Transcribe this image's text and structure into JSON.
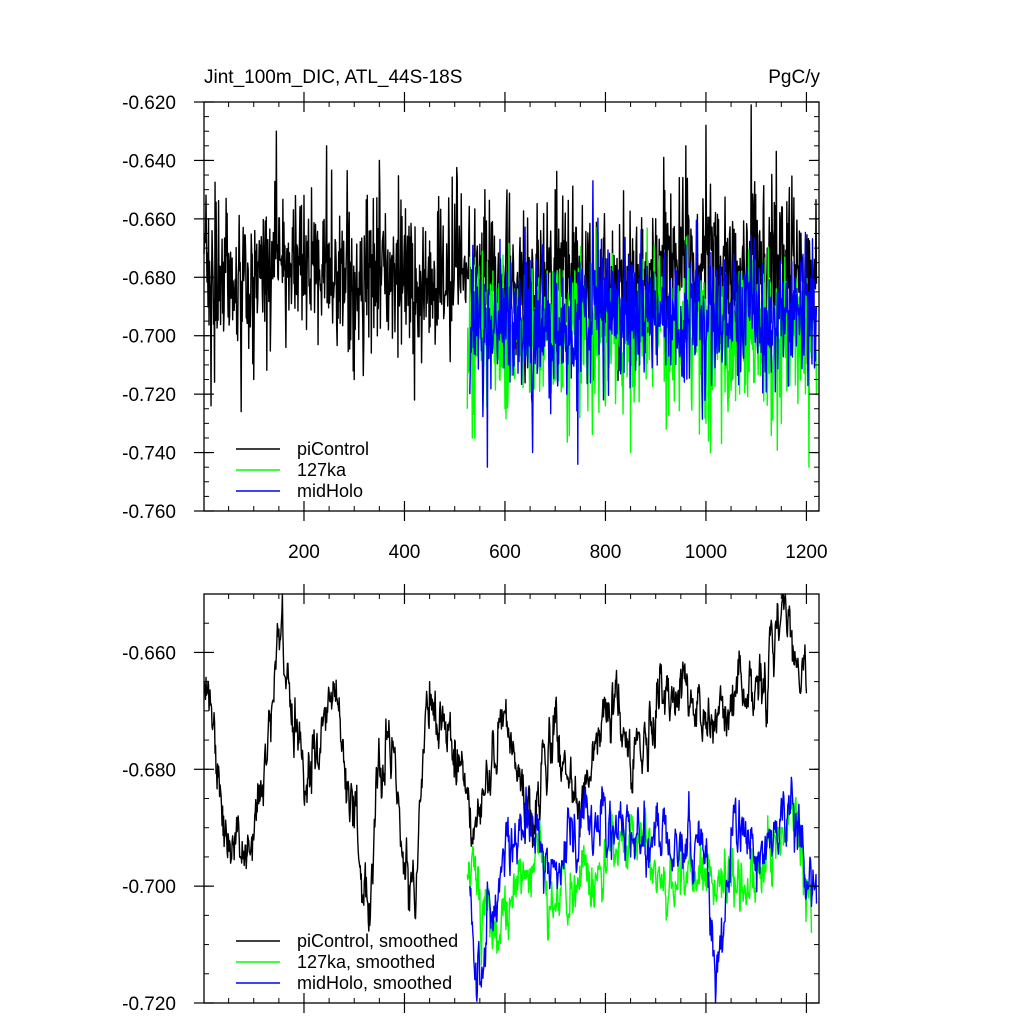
{
  "chart_data": [
    {
      "type": "line",
      "title": "Jint_100m_DIC, ATL_44S-18S",
      "units": "PgC/y",
      "xlim": [
        1,
        1225
      ],
      "ylim": [
        -0.76,
        -0.62
      ],
      "x_ticks": [
        200,
        400,
        600,
        800,
        1000,
        1200
      ],
      "y_ticks": [
        "-0.620",
        "-0.640",
        "-0.660",
        "-0.680",
        "-0.700",
        "-0.720",
        "-0.740",
        "-0.760"
      ],
      "legend": {
        "placement": "bottom-left",
        "entries": [
          "piControl",
          "127ka",
          "midHolo"
        ]
      },
      "series": [
        {
          "name": "piControl",
          "color": "#000000",
          "x_start": 1,
          "x_end": 1220,
          "mean": -0.68,
          "std": 0.014,
          "points": [
            [
              1,
              -0.672
            ],
            [
              10,
              -0.66
            ],
            [
              15,
              -0.724
            ],
            [
              45,
              -0.653
            ],
            [
              75,
              -0.726
            ],
            [
              100,
              -0.715
            ],
            [
              145,
              -0.63
            ],
            [
              200,
              -0.652
            ],
            [
              245,
              -0.635
            ],
            [
              300,
              -0.715
            ],
            [
              350,
              -0.64
            ],
            [
              420,
              -0.722
            ],
            [
              500,
              -0.655
            ],
            [
              530,
              -0.69
            ],
            [
              560,
              -0.65
            ],
            [
              600,
              -0.69
            ],
            [
              700,
              -0.65
            ],
            [
              800,
              -0.7
            ],
            [
              900,
              -0.66
            ],
            [
              960,
              -0.635
            ],
            [
              1000,
              -0.628
            ],
            [
              1090,
              -0.621
            ],
            [
              1150,
              -0.66
            ],
            [
              1210,
              -0.68
            ]
          ]
        },
        {
          "name": "127ka",
          "color": "#00ff00",
          "x_start": 525,
          "x_end": 1220,
          "mean": -0.697,
          "std": 0.014,
          "points": [
            [
              525,
              -0.725
            ],
            [
              535,
              -0.735
            ],
            [
              600,
              -0.725
            ],
            [
              700,
              -0.715
            ],
            [
              850,
              -0.74
            ],
            [
              900,
              -0.68
            ],
            [
              1000,
              -0.73
            ],
            [
              1100,
              -0.7
            ],
            [
              1150,
              -0.73
            ],
            [
              1205,
              -0.745
            ],
            [
              1220,
              -0.72
            ]
          ]
        },
        {
          "name": "midHolo",
          "color": "#0000ff",
          "x_start": 530,
          "x_end": 1220,
          "mean": -0.693,
          "std": 0.013,
          "points": [
            [
              530,
              -0.72
            ],
            [
              565,
              -0.745
            ],
            [
              600,
              -0.7
            ],
            [
              655,
              -0.74
            ],
            [
              745,
              -0.744
            ],
            [
              775,
              -0.647
            ],
            [
              850,
              -0.7
            ],
            [
              950,
              -0.69
            ],
            [
              1050,
              -0.7
            ],
            [
              1150,
              -0.7
            ],
            [
              1220,
              -0.69
            ]
          ]
        }
      ]
    },
    {
      "type": "line",
      "title": "",
      "xlim": [
        1,
        1225
      ],
      "ylim": [
        -0.72,
        -0.65
      ],
      "x_ticks": [
        200,
        400,
        600,
        800,
        1000,
        1200
      ],
      "y_ticks": [
        "-0.660",
        "-0.680",
        "-0.700",
        "-0.720"
      ],
      "legend": {
        "placement": "bottom-left",
        "entries": [
          "piControl, smoothed",
          "127ka, smoothed",
          "midHolo, smoothed"
        ]
      },
      "series": [
        {
          "name": "piControl, smoothed",
          "color": "#000000",
          "x_start": 1,
          "x_end": 1200,
          "points": [
            [
              1,
              -0.665
            ],
            [
              40,
              -0.688
            ],
            [
              85,
              -0.697
            ],
            [
              120,
              -0.682
            ],
            [
              150,
              -0.656
            ],
            [
              200,
              -0.685
            ],
            [
              245,
              -0.672
            ],
            [
              265,
              -0.668
            ],
            [
              300,
              -0.69
            ],
            [
              330,
              -0.703
            ],
            [
              345,
              -0.68
            ],
            [
              370,
              -0.674
            ],
            [
              400,
              -0.696
            ],
            [
              420,
              -0.703
            ],
            [
              450,
              -0.665
            ],
            [
              500,
              -0.675
            ],
            [
              530,
              -0.69
            ],
            [
              600,
              -0.67
            ],
            [
              650,
              -0.69
            ],
            [
              700,
              -0.672
            ],
            [
              750,
              -0.687
            ],
            [
              800,
              -0.668
            ],
            [
              850,
              -0.68
            ],
            [
              900,
              -0.67
            ],
            [
              960,
              -0.665
            ],
            [
              1000,
              -0.673
            ],
            [
              1050,
              -0.67
            ],
            [
              1100,
              -0.665
            ],
            [
              1160,
              -0.654
            ],
            [
              1200,
              -0.667
            ]
          ]
        },
        {
          "name": "127ka, smoothed",
          "color": "#00ff00",
          "x_start": 525,
          "x_end": 1210,
          "points": [
            [
              525,
              -0.698
            ],
            [
              560,
              -0.705
            ],
            [
              600,
              -0.7
            ],
            [
              650,
              -0.697
            ],
            [
              700,
              -0.703
            ],
            [
              750,
              -0.7
            ],
            [
              800,
              -0.697
            ],
            [
              850,
              -0.69
            ],
            [
              900,
              -0.698
            ],
            [
              950,
              -0.7
            ],
            [
              1000,
              -0.697
            ],
            [
              1050,
              -0.7
            ],
            [
              1100,
              -0.7
            ],
            [
              1150,
              -0.69
            ],
            [
              1180,
              -0.688
            ],
            [
              1210,
              -0.708
            ]
          ]
        },
        {
          "name": "midHolo, smoothed",
          "color": "#0000ff",
          "x_start": 530,
          "x_end": 1220,
          "points": [
            [
              530,
              -0.7
            ],
            [
              540,
              -0.716
            ],
            [
              600,
              -0.695
            ],
            [
              650,
              -0.69
            ],
            [
              700,
              -0.697
            ],
            [
              750,
              -0.69
            ],
            [
              800,
              -0.687
            ],
            [
              850,
              -0.695
            ],
            [
              900,
              -0.69
            ],
            [
              950,
              -0.694
            ],
            [
              1000,
              -0.695
            ],
            [
              1020,
              -0.718
            ],
            [
              1050,
              -0.69
            ],
            [
              1100,
              -0.695
            ],
            [
              1150,
              -0.685
            ],
            [
              1180,
              -0.69
            ],
            [
              1220,
              -0.703
            ]
          ]
        }
      ]
    }
  ]
}
